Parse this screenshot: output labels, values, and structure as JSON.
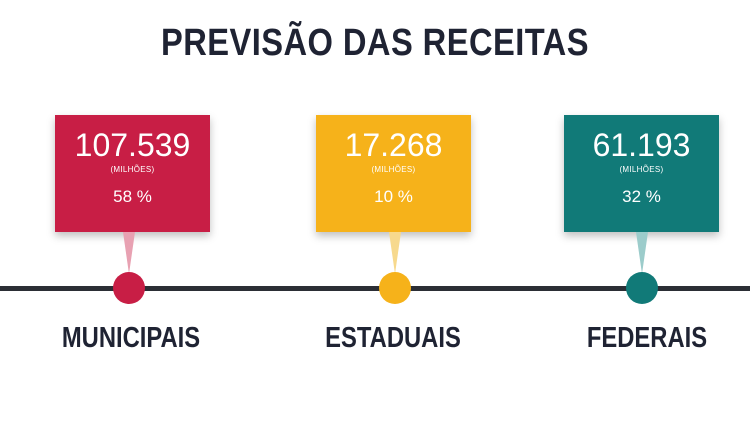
{
  "title": "PREVISÃO DAS RECEITAS",
  "items": [
    {
      "value": "107.539",
      "unit": "(MILHÕES)",
      "percent": "58 %",
      "label": "MUNICIPAIS",
      "color": "#c81e45",
      "pointer_color": "#e8a1b2"
    },
    {
      "value": "17.268",
      "unit": "(MILHÕES)",
      "percent": "10 %",
      "label": "ESTADUAIS",
      "color": "#f6b21a",
      "pointer_color": "#f7d98d"
    },
    {
      "value": "61.193",
      "unit": "(MILHÕES)",
      "percent": "32 %",
      "label": "FEDERAIS",
      "color": "#117a78",
      "pointer_color": "#9ccccb"
    }
  ]
}
